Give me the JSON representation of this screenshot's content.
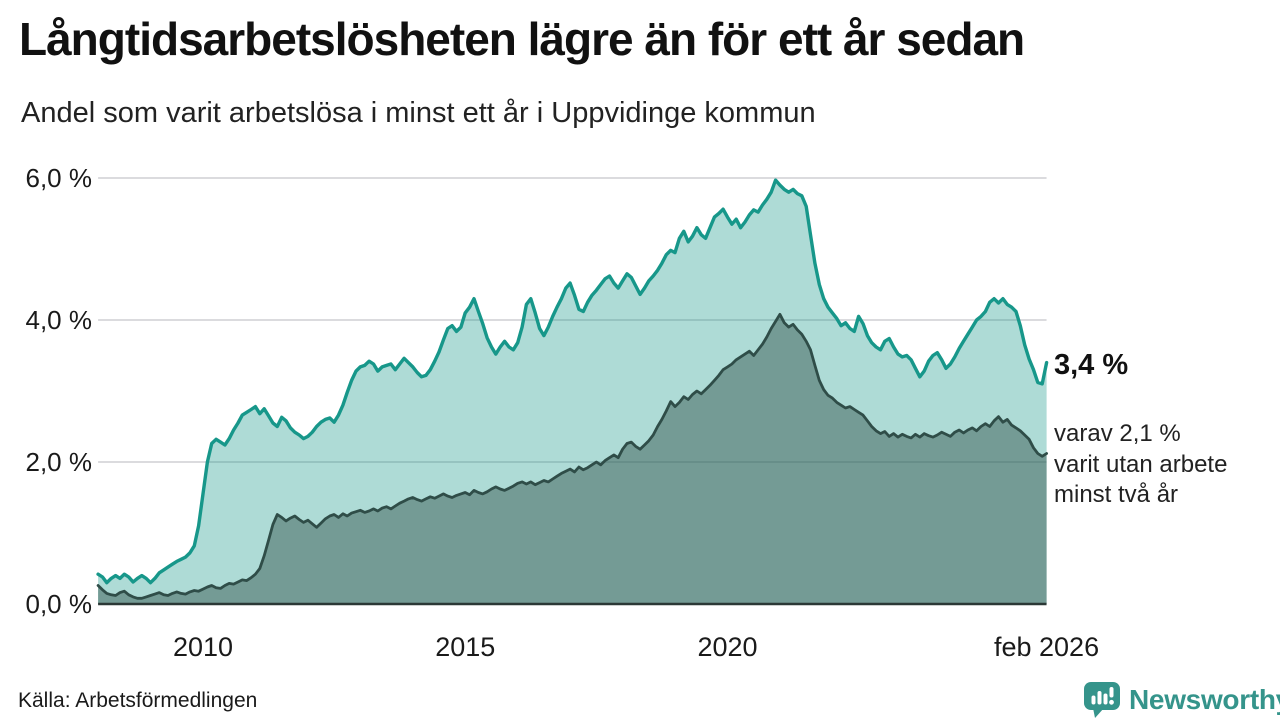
{
  "chart_data": {
    "type": "area",
    "title": "Långtidsarbetslösheten lägre än för ett år sedan",
    "subtitle": "Andel som varit arbetslösa i minst ett år i Uppvidinge kommun",
    "xlim": [
      2008.0,
      2026.083
    ],
    "ylim": [
      0,
      6.4
    ],
    "grid": "horizontal",
    "legend": "none",
    "x_axis": {
      "ticks": [
        {
          "label": "2010",
          "x": 2010
        },
        {
          "label": "2015",
          "x": 2015
        },
        {
          "label": "2020",
          "x": 2020
        },
        {
          "label": "feb 2026",
          "x": 2026.083
        }
      ]
    },
    "y_axis": {
      "unit": "%",
      "ticks": [
        {
          "label": "6,0 %",
          "value": 6.0
        },
        {
          "label": "4,0 %",
          "value": 4.0
        },
        {
          "label": "2,0 %",
          "value": 2.0
        },
        {
          "label": "0,0 %",
          "value": 0.0
        }
      ]
    },
    "x_start": 2008.0,
    "x_step": 0.0833333,
    "series": [
      {
        "name": "minst ett år",
        "stroke": "#17978a",
        "fill": "rgba(23,151,138,0.35)",
        "stroke_width": 3.4,
        "latest_value": 3.4,
        "values": [
          0.42,
          0.38,
          0.3,
          0.36,
          0.4,
          0.36,
          0.42,
          0.38,
          0.31,
          0.36,
          0.4,
          0.36,
          0.3,
          0.36,
          0.44,
          0.48,
          0.52,
          0.56,
          0.6,
          0.63,
          0.66,
          0.72,
          0.82,
          1.1,
          1.55,
          2.0,
          2.26,
          2.32,
          2.28,
          2.24,
          2.33,
          2.45,
          2.55,
          2.66,
          2.7,
          2.74,
          2.78,
          2.68,
          2.75,
          2.65,
          2.55,
          2.5,
          2.63,
          2.58,
          2.48,
          2.42,
          2.38,
          2.33,
          2.36,
          2.42,
          2.5,
          2.56,
          2.6,
          2.62,
          2.56,
          2.66,
          2.8,
          2.98,
          3.15,
          3.28,
          3.34,
          3.36,
          3.42,
          3.38,
          3.28,
          3.34,
          3.36,
          3.38,
          3.3,
          3.38,
          3.46,
          3.4,
          3.34,
          3.26,
          3.2,
          3.22,
          3.3,
          3.42,
          3.55,
          3.72,
          3.88,
          3.92,
          3.84,
          3.9,
          4.1,
          4.18,
          4.3,
          4.12,
          3.95,
          3.75,
          3.62,
          3.52,
          3.62,
          3.7,
          3.62,
          3.58,
          3.68,
          3.9,
          4.22,
          4.3,
          4.1,
          3.88,
          3.78,
          3.9,
          4.05,
          4.18,
          4.3,
          4.45,
          4.52,
          4.35,
          4.15,
          4.12,
          4.25,
          4.35,
          4.42,
          4.5,
          4.58,
          4.62,
          4.52,
          4.45,
          4.55,
          4.65,
          4.6,
          4.48,
          4.36,
          4.45,
          4.55,
          4.62,
          4.7,
          4.8,
          4.92,
          4.98,
          4.95,
          5.15,
          5.25,
          5.1,
          5.18,
          5.3,
          5.2,
          5.15,
          5.3,
          5.45,
          5.5,
          5.56,
          5.45,
          5.35,
          5.42,
          5.3,
          5.38,
          5.48,
          5.55,
          5.52,
          5.62,
          5.7,
          5.8,
          5.97,
          5.9,
          5.84,
          5.8,
          5.84,
          5.78,
          5.75,
          5.6,
          5.2,
          4.8,
          4.5,
          4.3,
          4.18,
          4.1,
          4.02,
          3.92,
          3.96,
          3.88,
          3.84,
          4.05,
          3.95,
          3.78,
          3.68,
          3.62,
          3.58,
          3.7,
          3.74,
          3.62,
          3.52,
          3.48,
          3.5,
          3.44,
          3.32,
          3.2,
          3.28,
          3.42,
          3.5,
          3.54,
          3.44,
          3.32,
          3.38,
          3.48,
          3.6,
          3.7,
          3.8,
          3.9,
          4.0,
          4.05,
          4.12,
          4.25,
          4.3,
          4.24,
          4.3,
          4.22,
          4.18,
          4.12,
          3.92,
          3.65,
          3.45,
          3.3,
          3.12,
          3.1,
          3.4
        ]
      },
      {
        "name": "minst två år",
        "stroke": "#2f4d48",
        "fill": "rgba(47,77,72,0.45)",
        "stroke_width": 2.8,
        "latest_value": 2.1,
        "values": [
          0.26,
          0.2,
          0.15,
          0.13,
          0.12,
          0.16,
          0.18,
          0.13,
          0.1,
          0.08,
          0.08,
          0.1,
          0.12,
          0.14,
          0.16,
          0.13,
          0.12,
          0.15,
          0.17,
          0.15,
          0.14,
          0.17,
          0.19,
          0.18,
          0.21,
          0.24,
          0.26,
          0.23,
          0.22,
          0.26,
          0.29,
          0.28,
          0.31,
          0.34,
          0.33,
          0.37,
          0.42,
          0.5,
          0.68,
          0.9,
          1.12,
          1.26,
          1.22,
          1.17,
          1.21,
          1.24,
          1.19,
          1.15,
          1.18,
          1.13,
          1.08,
          1.14,
          1.2,
          1.24,
          1.26,
          1.22,
          1.27,
          1.24,
          1.28,
          1.3,
          1.32,
          1.29,
          1.31,
          1.34,
          1.31,
          1.35,
          1.37,
          1.34,
          1.38,
          1.42,
          1.45,
          1.48,
          1.5,
          1.47,
          1.45,
          1.48,
          1.51,
          1.49,
          1.52,
          1.55,
          1.52,
          1.5,
          1.53,
          1.55,
          1.57,
          1.54,
          1.6,
          1.57,
          1.55,
          1.58,
          1.62,
          1.65,
          1.62,
          1.6,
          1.63,
          1.66,
          1.7,
          1.72,
          1.69,
          1.72,
          1.68,
          1.71,
          1.74,
          1.72,
          1.76,
          1.8,
          1.84,
          1.87,
          1.9,
          1.86,
          1.93,
          1.89,
          1.92,
          1.96,
          2.0,
          1.96,
          2.02,
          2.06,
          2.1,
          2.06,
          2.18,
          2.26,
          2.28,
          2.22,
          2.18,
          2.24,
          2.3,
          2.38,
          2.5,
          2.6,
          2.72,
          2.85,
          2.78,
          2.84,
          2.92,
          2.88,
          2.95,
          3.0,
          2.96,
          3.02,
          3.08,
          3.15,
          3.22,
          3.3,
          3.34,
          3.38,
          3.44,
          3.48,
          3.52,
          3.56,
          3.5,
          3.58,
          3.66,
          3.76,
          3.88,
          3.98,
          4.08,
          3.96,
          3.9,
          3.94,
          3.86,
          3.8,
          3.7,
          3.58,
          3.36,
          3.15,
          3.02,
          2.94,
          2.9,
          2.84,
          2.8,
          2.76,
          2.78,
          2.74,
          2.7,
          2.66,
          2.58,
          2.5,
          2.44,
          2.4,
          2.43,
          2.36,
          2.4,
          2.35,
          2.39,
          2.36,
          2.34,
          2.39,
          2.35,
          2.4,
          2.37,
          2.35,
          2.38,
          2.42,
          2.39,
          2.36,
          2.42,
          2.45,
          2.41,
          2.45,
          2.48,
          2.44,
          2.5,
          2.54,
          2.5,
          2.58,
          2.64,
          2.56,
          2.6,
          2.52,
          2.48,
          2.44,
          2.38,
          2.32,
          2.2,
          2.12,
          2.08,
          2.12
        ]
      }
    ],
    "annotations": {
      "latest_total": "3,4 %",
      "secondary": [
        "varav 2,1 %",
        "varit utan arbete",
        "minst två år"
      ]
    },
    "style": {
      "gridline": "#dbdbde",
      "axis_line": "#2b3836"
    }
  },
  "footer": {
    "source": "Källa: Arbetsförmedlingen",
    "logo_text": "Newsworthy",
    "logo_color": "#35948b"
  }
}
